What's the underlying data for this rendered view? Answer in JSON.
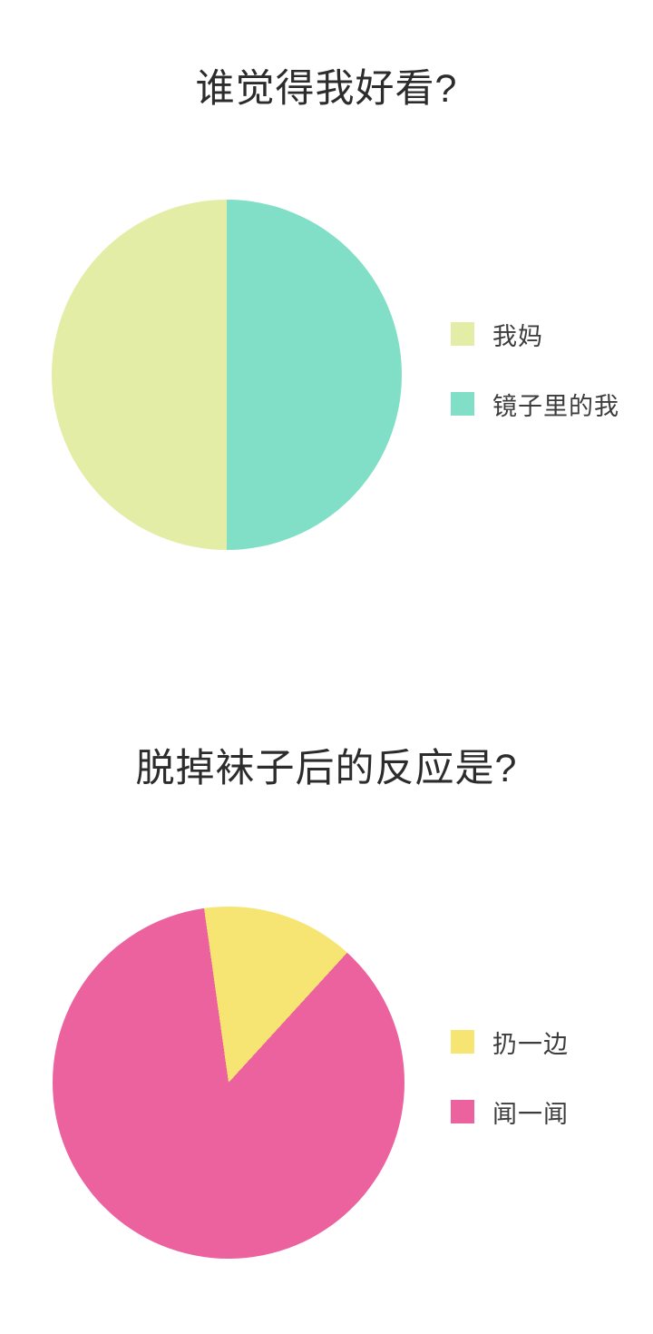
{
  "chart_data": [
    {
      "type": "pie",
      "title": "谁觉得我好看?",
      "legend_position": "right",
      "start_angle_deg": 180,
      "slices": [
        {
          "label": "我妈",
          "value_pct": 50,
          "color": "#e3eda5"
        },
        {
          "label": "镜子里的我",
          "value_pct": 50,
          "color": "#80dfc6"
        }
      ]
    },
    {
      "type": "pie",
      "title": "脱掉袜子后的反应是?",
      "legend_position": "right",
      "start_angle_deg": -8,
      "slices": [
        {
          "label": "扔一边",
          "value_pct": 14,
          "color": "#f6e573"
        },
        {
          "label": "闻一闻",
          "value_pct": 86,
          "color": "#ec629e"
        }
      ]
    }
  ]
}
